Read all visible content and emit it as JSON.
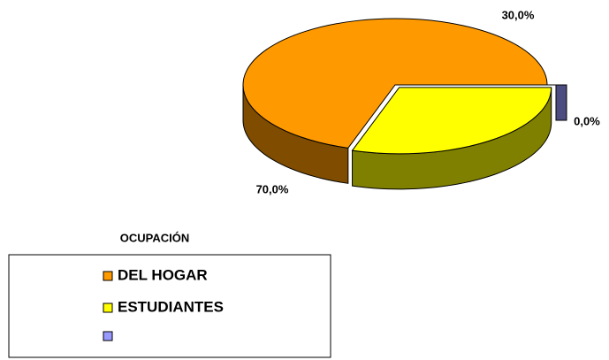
{
  "chart_data": {
    "type": "pie",
    "legend_title": "OCUPACIÓN",
    "categories": [
      "DEL HOGAR",
      "ESTUDIANTES",
      null
    ],
    "values": [
      70,
      30,
      0
    ],
    "value_labels": [
      "70,0%",
      "30,0%",
      "0,0%"
    ],
    "colors": [
      "#FF9900",
      "#FFFF00",
      "#9999FF"
    ],
    "side_colors": [
      "#7F4C00",
      "#808000",
      "#4C4C80"
    ],
    "legend": "bottom-left"
  }
}
